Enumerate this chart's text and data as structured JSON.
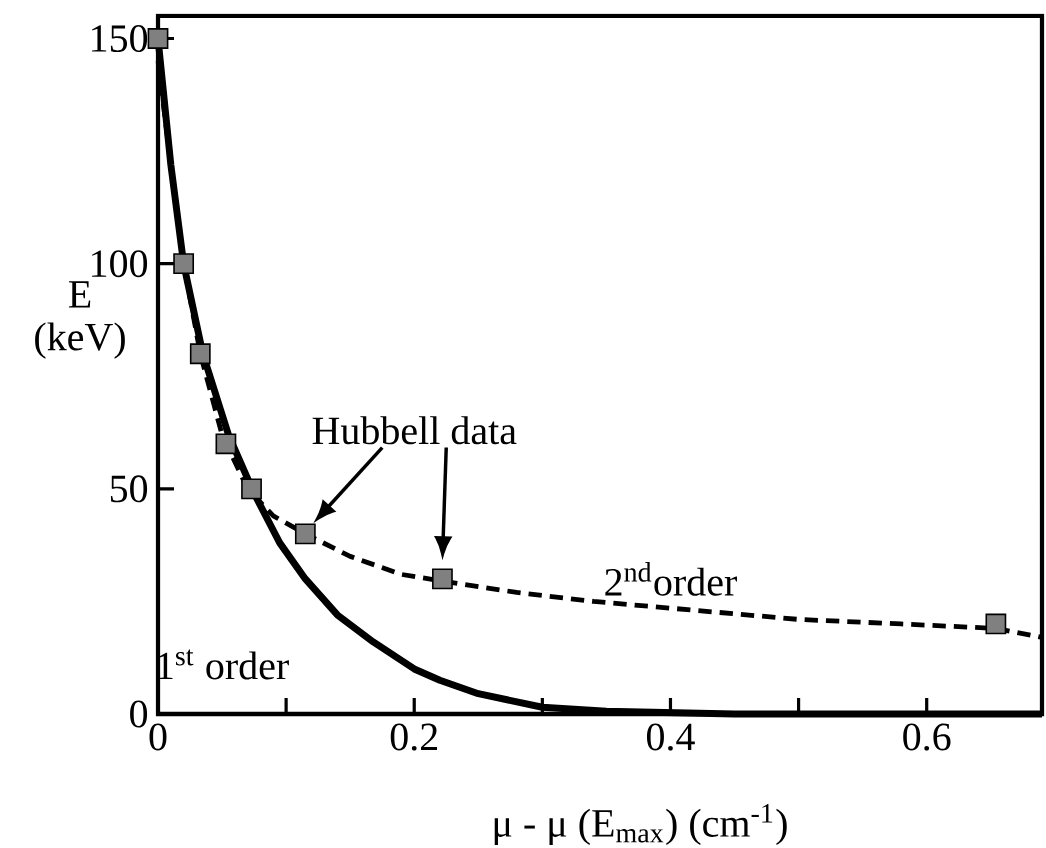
{
  "chart_data": {
    "type": "line",
    "xlabel": "μ - μ (E$_{max}$)   (cm$^{-1}$)",
    "ylabel": "E (keV)",
    "xlim": [
      0,
      0.69
    ],
    "ylim": [
      0,
      155
    ],
    "xticks": [
      0,
      {
        "value": 0.1,
        "label": null
      },
      0.2,
      {
        "value": 0.3,
        "label": null
      },
      0.4,
      {
        "value": 0.5,
        "label": null
      },
      0.6
    ],
    "yticks": [
      0,
      50,
      100,
      150
    ],
    "grid": false,
    "series": [
      {
        "line_style": "solid",
        "marker": "none",
        "color": "#000000",
        "x": [
          0,
          0.01,
          0.02,
          0.035,
          0.055,
          0.075,
          0.095,
          0.115,
          0.14,
          0.168,
          0.2,
          0.22,
          0.25,
          0.3,
          0.35,
          0.45,
          0.69
        ],
        "values": [
          150,
          122,
          100,
          80,
          62,
          49,
          38,
          30,
          22,
          16,
          10,
          7.5,
          4.5,
          1.5,
          0.6,
          0,
          0
        ]
      },
      {
        "line_style": "dashed",
        "marker": "none",
        "color": "#000000",
        "x": [
          0,
          0.01,
          0.02,
          0.033,
          0.05,
          0.07,
          0.09,
          0.115,
          0.15,
          0.19,
          0.222,
          0.28,
          0.34,
          0.42,
          0.5,
          0.58,
          0.654,
          0.69
        ],
        "values": [
          145,
          122,
          100,
          80,
          62,
          50,
          44,
          40,
          35,
          31,
          29.5,
          27,
          25,
          23,
          21,
          20,
          19,
          17
        ]
      },
      {
        "type": "scatter",
        "marker": "square",
        "color": "#808080",
        "x": [
          0,
          0.02,
          0.033,
          0.053,
          0.073,
          0.115,
          0.222,
          0.654
        ],
        "values": [
          150,
          100,
          80,
          60,
          50,
          40,
          30,
          20
        ]
      }
    ],
    "annotations": [
      "Hubbell data",
      "2$^{nd}$order",
      "1$^{st}$ order"
    ]
  }
}
